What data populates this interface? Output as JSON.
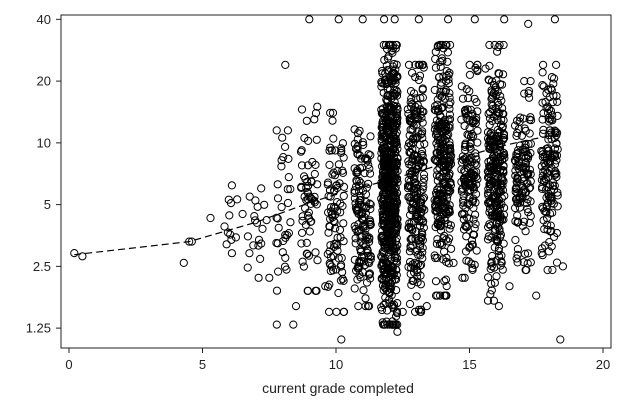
{
  "chart_data": {
    "type": "scatter",
    "title": "",
    "xlabel": "current grade completed",
    "ylabel": "",
    "xlim": [
      -0.3,
      20.3
    ],
    "ylim": [
      1.0,
      42
    ],
    "y_scale": "log2",
    "grid": false,
    "legend": "none",
    "x_ticks": [
      0,
      5,
      10,
      15,
      20
    ],
    "x_tick_labels": [
      "0",
      "5",
      "10",
      "15",
      "20"
    ],
    "y_ticks": [
      1.25,
      2.5,
      5,
      10,
      20,
      40
    ],
    "y_tick_labels": [
      "1.25",
      "2.5",
      "5",
      "10",
      "20",
      "40"
    ],
    "marker": "hollow circle",
    "marker_color": "#000000",
    "sample_points": [
      {
        "x": 0.2,
        "y": 2.9
      },
      {
        "x": 0.5,
        "y": 2.8
      },
      {
        "x": 4.3,
        "y": 2.6
      },
      {
        "x": 4.5,
        "y": 3.3
      },
      {
        "x": 4.6,
        "y": 3.3
      },
      {
        "x": 5.3,
        "y": 4.3
      },
      {
        "x": 6.1,
        "y": 6.2
      },
      {
        "x": 6.3,
        "y": 5.3
      },
      {
        "x": 6.5,
        "y": 4.5
      },
      {
        "x": 6.7,
        "y": 3.5
      },
      {
        "x": 7.2,
        "y": 6.0
      },
      {
        "x": 7.5,
        "y": 2.2
      },
      {
        "x": 7.4,
        "y": 4.2
      },
      {
        "x": 8.1,
        "y": 24.0
      },
      {
        "x": 8.2,
        "y": 11.5
      },
      {
        "x": 8.5,
        "y": 1.6
      },
      {
        "x": 8.4,
        "y": 1.3
      },
      {
        "x": 8.7,
        "y": 6.1
      },
      {
        "x": 9.0,
        "y": 40.0
      },
      {
        "x": 9.3,
        "y": 15.0
      },
      {
        "x": 9.6,
        "y": 2.0
      },
      {
        "x": 10.1,
        "y": 40.0
      },
      {
        "x": 10.2,
        "y": 1.1
      },
      {
        "x": 10.3,
        "y": 1.5
      },
      {
        "x": 11.0,
        "y": 40.0
      },
      {
        "x": 11.2,
        "y": 1.6
      },
      {
        "x": 11.8,
        "y": 40.0
      },
      {
        "x": 12.2,
        "y": 40.0
      },
      {
        "x": 12.3,
        "y": 1.2
      },
      {
        "x": 12.5,
        "y": 1.5
      },
      {
        "x": 13.1,
        "y": 40.0
      },
      {
        "x": 13.4,
        "y": 1.6
      },
      {
        "x": 14.2,
        "y": 40.0
      },
      {
        "x": 14.4,
        "y": 2.6
      },
      {
        "x": 15.2,
        "y": 40.0
      },
      {
        "x": 15.6,
        "y": 23.0
      },
      {
        "x": 16.1,
        "y": 1.6
      },
      {
        "x": 16.3,
        "y": 40.0
      },
      {
        "x": 16.5,
        "y": 2.0
      },
      {
        "x": 17.2,
        "y": 38.0
      },
      {
        "x": 17.5,
        "y": 1.8
      },
      {
        "x": 18.2,
        "y": 40.0
      },
      {
        "x": 18.4,
        "y": 1.1
      },
      {
        "x": 18.5,
        "y": 2.5
      }
    ],
    "clusters": [
      {
        "x": 6,
        "n": 10,
        "ymin": 2.7,
        "ymax": 6.5
      },
      {
        "x": 7,
        "n": 16,
        "ymin": 2.2,
        "ymax": 6.5
      },
      {
        "x": 8,
        "n": 32,
        "ymin": 1.3,
        "ymax": 11.5
      },
      {
        "x": 9,
        "n": 60,
        "ymin": 1.9,
        "ymax": 15
      },
      {
        "x": 10,
        "n": 90,
        "ymin": 1.5,
        "ymax": 14
      },
      {
        "x": 11,
        "n": 150,
        "ymin": 1.6,
        "ymax": 14
      },
      {
        "x": 12,
        "n": 650,
        "ymin": 1.3,
        "ymax": 30
      },
      {
        "x": 13,
        "n": 240,
        "ymin": 1.5,
        "ymax": 24
      },
      {
        "x": 14,
        "n": 290,
        "ymin": 1.8,
        "ymax": 30
      },
      {
        "x": 15,
        "n": 160,
        "ymin": 2.2,
        "ymax": 24
      },
      {
        "x": 16,
        "n": 280,
        "ymin": 1.7,
        "ymax": 30
      },
      {
        "x": 17,
        "n": 130,
        "ymin": 2.4,
        "ymax": 20
      },
      {
        "x": 18,
        "n": 150,
        "ymin": 2.4,
        "ymax": 24
      }
    ],
    "trend_line": {
      "style": "dashed",
      "x": [
        0.2,
        4.5,
        7,
        9,
        10,
        11,
        12,
        13,
        14,
        15,
        16,
        17,
        18.3
      ],
      "y": [
        2.85,
        3.3,
        4.1,
        5.1,
        5.6,
        6.1,
        6.6,
        7.2,
        7.9,
        8.7,
        9.5,
        10.2,
        11.0
      ]
    }
  }
}
